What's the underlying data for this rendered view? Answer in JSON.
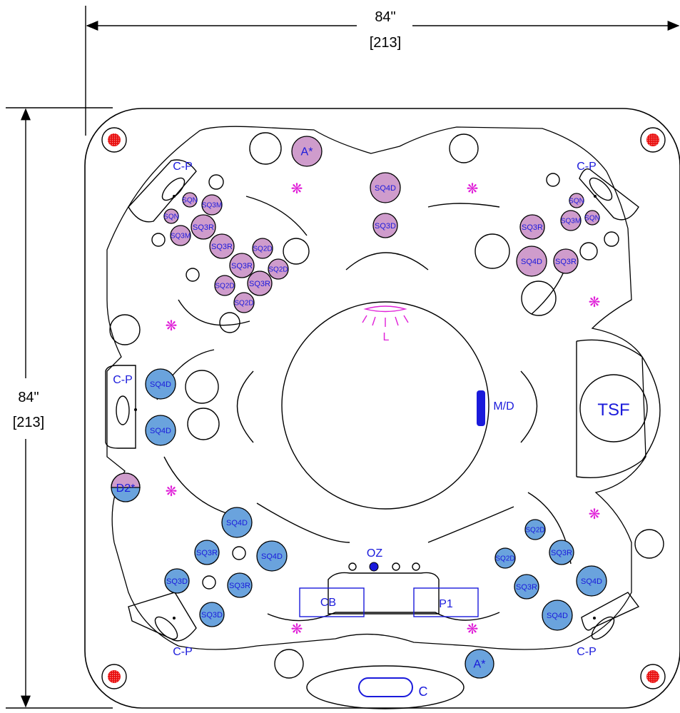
{
  "dimensions": {
    "width_label": "84\"",
    "width_metric": "[213]",
    "height_label": "84\"",
    "height_metric": "[213]"
  },
  "colors": {
    "outline": "#000000",
    "label_blue": "#1a1adb",
    "purple_jet": "#cf9ccc",
    "blue_jet": "#6aa3dd",
    "pink": "#e020d8",
    "red": "#e81010"
  },
  "labels": {
    "cp_top_left": "C-P",
    "cp_top_right": "C-P",
    "cp_left": "C-P",
    "cp_bottom_left": "C-P",
    "cp_bottom_right": "C-P",
    "light": "L",
    "md": "M/D",
    "tsf": "TSF",
    "oz": "OZ",
    "cb": "CB",
    "p1": "P1",
    "c": "C"
  },
  "jets": {
    "top_a": "A*",
    "bottom_a": "A*",
    "d2": "D2*",
    "top_center": [
      "SQ4D",
      "SQ3D"
    ],
    "top_left": [
      "SQN",
      "SQ3M",
      "SQN",
      "SQ3R",
      "SQ3M",
      "SQ3R",
      "SQ2D",
      "SQ3R",
      "SQ2D",
      "SQ2D",
      "SQ3R",
      "SQ2D"
    ],
    "top_right": [
      "SQN",
      "SQ3M",
      "SQN",
      "SQ3R",
      "SQ4D",
      "SQ3R"
    ],
    "left": [
      "SQ4D",
      "SQ4D"
    ],
    "bottom_left": [
      "SQ4D",
      "SQ3R",
      "SQ4D",
      "SQ3D",
      "SQ3R",
      "SQ3D"
    ],
    "bottom_right": [
      "SQ2D",
      "SQ2D",
      "SQ3R",
      "SQ4D",
      "SQ3R",
      "SQ4D"
    ]
  }
}
